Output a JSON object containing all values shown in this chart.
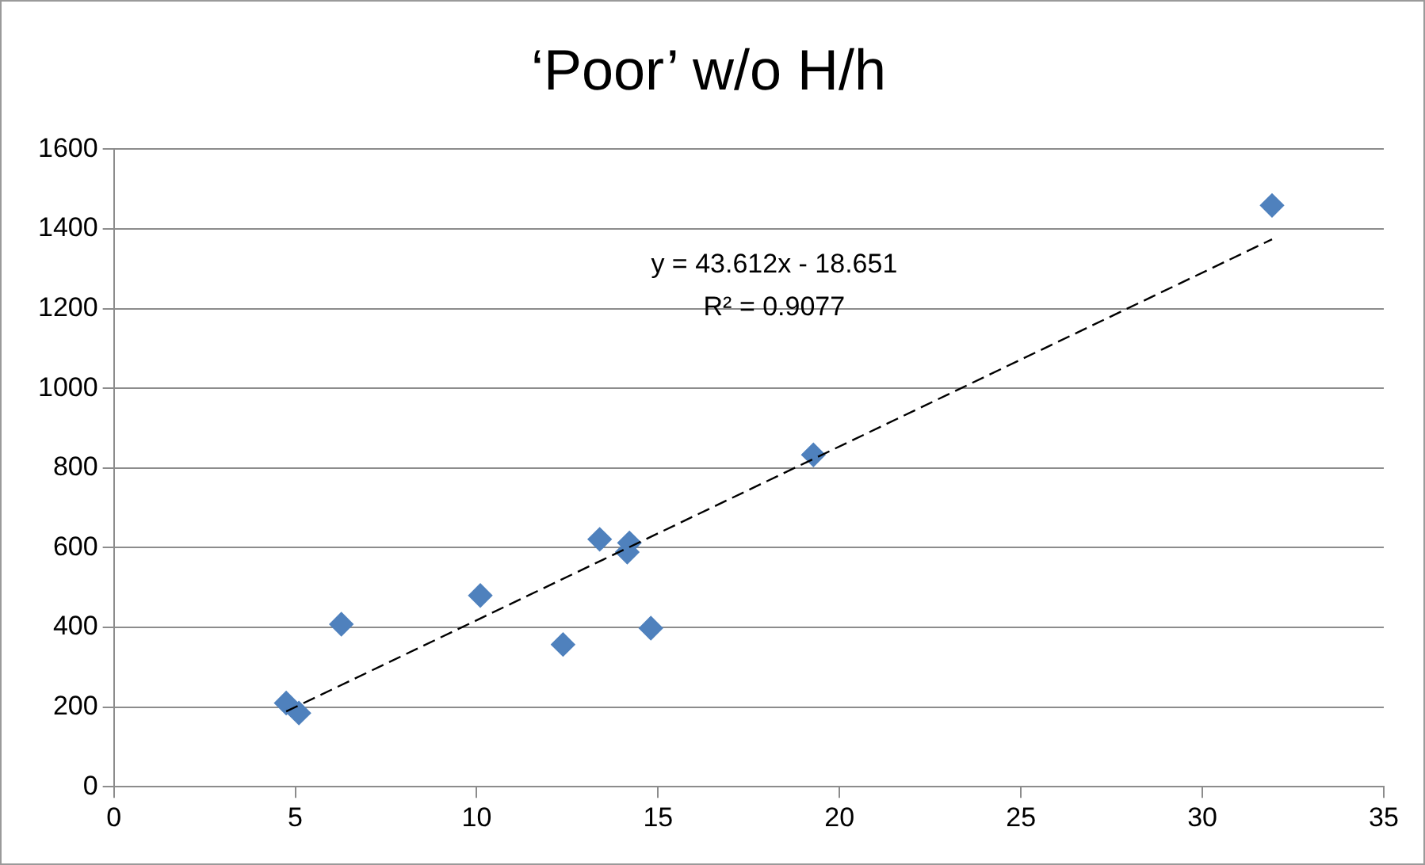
{
  "chart_data": {
    "type": "scatter",
    "title": "‘Poor’ w/o H/h",
    "series": [
      {
        "color": "#4f81bd",
        "marker": "diamond",
        "x": [
          4.75,
          5.1,
          6.27,
          10.1,
          12.38,
          13.39,
          14.15,
          14.21,
          14.8,
          19.28,
          31.92
        ],
        "values": [
          210,
          185,
          408,
          480,
          357,
          621,
          589,
          612,
          398,
          833,
          1459
        ]
      },
      {
        "type": "line",
        "color": "#000000",
        "marker": "none",
        "line_style": "dashed",
        "x": [
          4.75,
          31.92
        ],
        "values": [
          189,
          1374
        ]
      }
    ],
    "annotations": [
      "y = 43.612x - 18.651",
      "R² = 0.9077"
    ],
    "xlim": [
      0,
      35
    ],
    "xticks": [
      0,
      5,
      10,
      15,
      20,
      25,
      30,
      35
    ],
    "ylim": [
      0,
      1600
    ],
    "yticks": [
      0,
      200,
      400,
      600,
      800,
      1000,
      1200,
      1400,
      1600
    ],
    "grid": "y",
    "legend": false
  }
}
